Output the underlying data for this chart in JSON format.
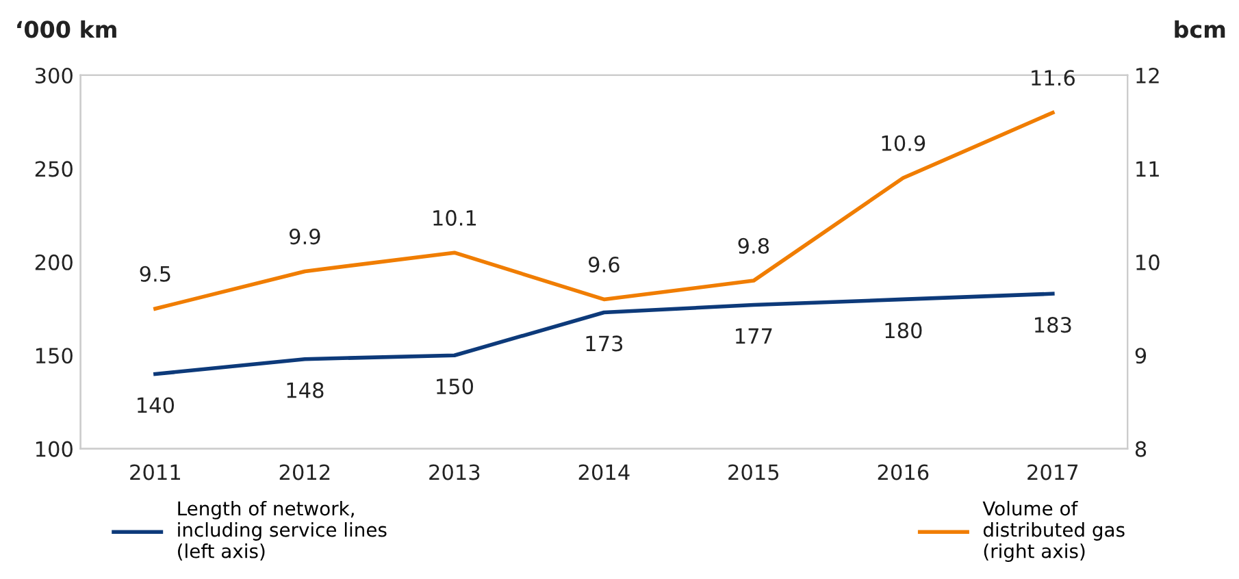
{
  "chart_data": {
    "type": "line",
    "ylabel": "‘000 km",
    "y2label": "bcm",
    "categories": [
      "2011",
      "2012",
      "2013",
      "2014",
      "2015",
      "2016",
      "2017"
    ],
    "series": [
      {
        "name": "Length of network,\nincluding service lines\n(left axis)",
        "color": "#0d3a7a",
        "values": [
          140,
          148,
          150,
          173,
          177,
          180,
          183
        ]
      },
      {
        "name": "Volume of\ndistributed gas\n(right axis)",
        "color": "#f07d00",
        "values": [
          9.5,
          9.9,
          10.1,
          9.6,
          9.8,
          10.9,
          11.6
        ],
        "axis": "y2"
      }
    ],
    "ylim": [
      100,
      300
    ],
    "yticks": [
      100,
      150,
      200,
      250,
      300
    ],
    "y2lim": [
      8,
      12
    ],
    "y2ticks": [
      8,
      9,
      10,
      11,
      12
    ],
    "data_labels": true,
    "legend": "bottom",
    "grid": false,
    "marker": "none",
    "line_style": "solid"
  }
}
